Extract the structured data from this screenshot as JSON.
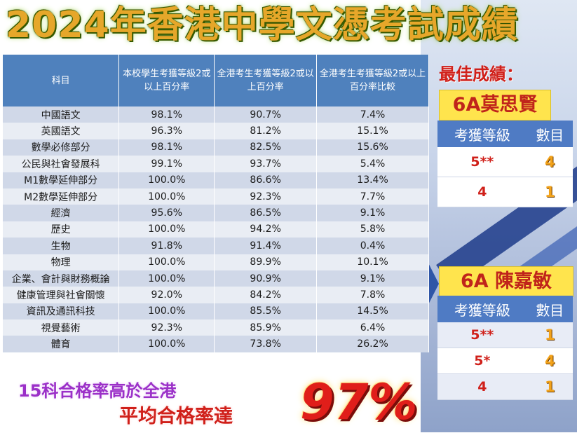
{
  "title": "2024年香港中學文憑考試成績",
  "table": {
    "headers": [
      "科目",
      "本校學生考獲等級2或以上百分率",
      "全港考生考獲等級2或以上百分率",
      "全港考生考獲等級2或以上百分率比較"
    ],
    "rows": [
      [
        "中國語文",
        "98.1%",
        "90.7%",
        "7.4%"
      ],
      [
        "英國語文",
        "96.3%",
        "81.2%",
        "15.1%"
      ],
      [
        "數學必修部分",
        "98.1%",
        "82.5%",
        "15.6%"
      ],
      [
        "公民與社會發展科",
        "99.1%",
        "93.7%",
        "5.4%"
      ],
      [
        "M1數學延伸部分",
        "100.0%",
        "86.6%",
        "13.4%"
      ],
      [
        "M2數學延伸部分",
        "100.0%",
        "92.3%",
        "7.7%"
      ],
      [
        "經濟",
        "95.6%",
        "86.5%",
        "9.1%"
      ],
      [
        "歷史",
        "100.0%",
        "94.2%",
        "5.8%"
      ],
      [
        "生物",
        "91.8%",
        "91.4%",
        "0.4%"
      ],
      [
        "物理",
        "100.0%",
        "89.9%",
        "10.1%"
      ],
      [
        "企業、會計與財務概論",
        "100.0%",
        "90.9%",
        "9.1%"
      ],
      [
        "健康管理與社會關懷",
        "92.0%",
        "84.2%",
        "7.8%"
      ],
      [
        "資訊及通訊科技",
        "100.0%",
        "85.5%",
        "14.5%"
      ],
      [
        "視覺藝術",
        "92.3%",
        "85.9%",
        "6.4%"
      ],
      [
        "體育",
        "100.0%",
        "73.8%",
        "26.2%"
      ]
    ]
  },
  "best": {
    "label": "最佳成績：",
    "student1": {
      "name": "6A莫思賢",
      "header_grade": "考獲等級",
      "header_count": "數目",
      "rows": [
        {
          "grade": "5**",
          "count": "4"
        },
        {
          "grade": "4",
          "count": "1"
        }
      ]
    },
    "student2": {
      "name": "6A 陳嘉敏",
      "header_grade": "考獲等級",
      "header_count": "數目",
      "rows": [
        {
          "grade": "5**",
          "count": "1"
        },
        {
          "grade": "5*",
          "count": "4"
        },
        {
          "grade": "4",
          "count": "1"
        }
      ]
    }
  },
  "footer": {
    "line1": "15科合格率高於全港",
    "line2": "平均合格率達",
    "percent": "97%"
  },
  "colors": {
    "header_blue": "#4f81bd",
    "title_gold": "#e6a72a",
    "accent_red": "#d0201a",
    "purple": "#9b30c8"
  }
}
